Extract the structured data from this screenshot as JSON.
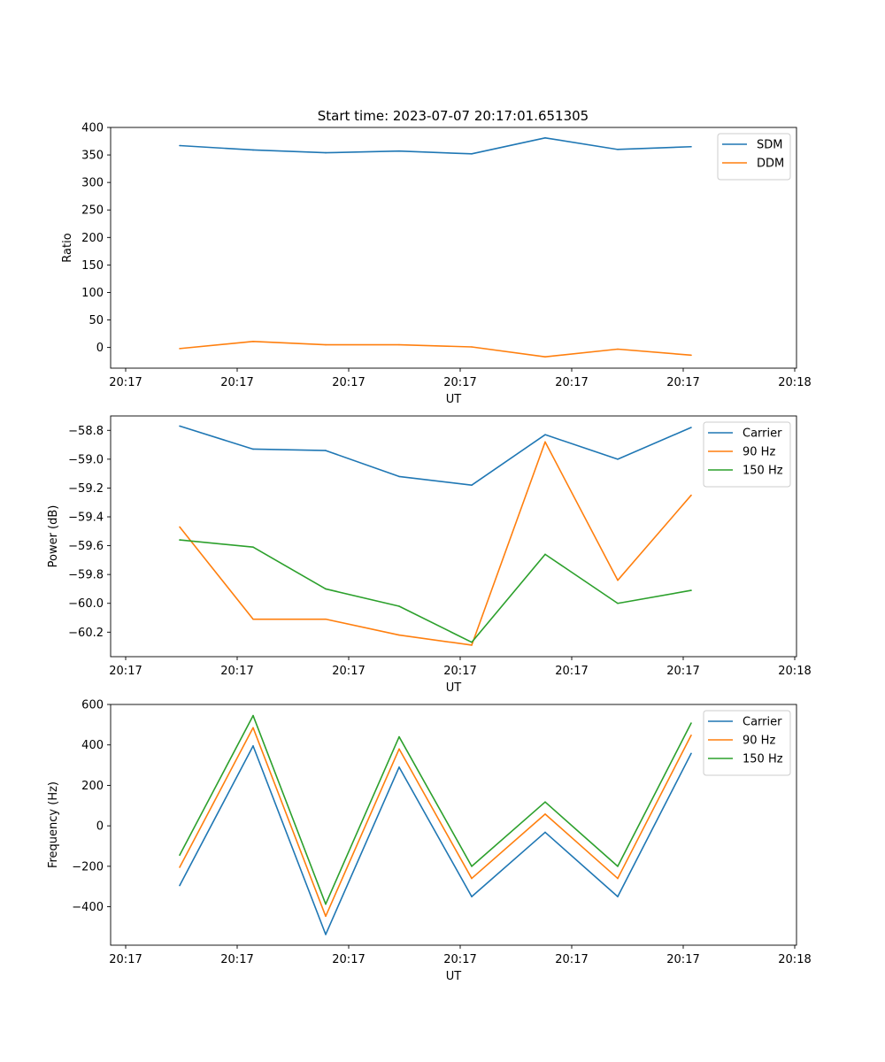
{
  "figure": {
    "title": "Start time: 2023-07-07 20:17:01.651305"
  },
  "chart_data": [
    {
      "type": "line",
      "name": "ratio",
      "xlabel": "UT",
      "ylabel": "Ratio",
      "xtick_labels": [
        "20:17",
        "20:17",
        "20:17",
        "20:17",
        "20:17",
        "20:17",
        "20:18"
      ],
      "ylim": [
        -37.6,
        400
      ],
      "yticks": [
        0,
        50,
        100,
        150,
        200,
        250,
        300,
        350,
        400
      ],
      "legend": "top-right",
      "series": [
        {
          "name": "SDM",
          "color": "#1f77b4",
          "values": [
            367,
            359,
            354,
            357,
            352,
            381,
            360,
            365
          ]
        },
        {
          "name": "DDM",
          "color": "#ff7f0e",
          "values": [
            -2,
            11,
            5,
            5,
            1,
            -17,
            -3,
            -14
          ]
        }
      ]
    },
    {
      "type": "line",
      "name": "power",
      "xlabel": "UT",
      "ylabel": "Power (dB)",
      "xtick_labels": [
        "20:17",
        "20:17",
        "20:17",
        "20:17",
        "20:17",
        "20:17",
        "20:18"
      ],
      "ylim": [
        -60.37,
        -58.7
      ],
      "yticks": [
        -60.2,
        -60.0,
        -59.8,
        -59.6,
        -59.4,
        -59.2,
        -59.0,
        -58.8
      ],
      "ytick_labels": [
        "−60.2",
        "−60.0",
        "−59.8",
        "−59.6",
        "−59.4",
        "−59.2",
        "−59.0",
        "−58.8"
      ],
      "legend": "top-right",
      "series": [
        {
          "name": "Carrier",
          "color": "#1f77b4",
          "values": [
            -58.77,
            -58.93,
            -58.94,
            -59.12,
            -59.18,
            -58.83,
            -59.0,
            -58.78
          ]
        },
        {
          "name": "90 Hz",
          "color": "#ff7f0e",
          "values": [
            -59.47,
            -60.11,
            -60.11,
            -60.22,
            -60.29,
            -58.88,
            -59.84,
            -59.25
          ]
        },
        {
          "name": "150 Hz",
          "color": "#2ca02c",
          "values": [
            -59.56,
            -59.61,
            -59.9,
            -60.02,
            -60.27,
            -59.66,
            -60.0,
            -59.91
          ]
        }
      ]
    },
    {
      "type": "line",
      "name": "frequency",
      "xlabel": "UT",
      "ylabel": "Frequency (Hz)",
      "xtick_labels": [
        "20:17",
        "20:17",
        "20:17",
        "20:17",
        "20:17",
        "20:17",
        "20:18"
      ],
      "ylim": [
        -590,
        600
      ],
      "yticks": [
        -400,
        -200,
        0,
        200,
        400,
        600
      ],
      "ytick_labels": [
        "−400",
        "−200",
        "0",
        "200",
        "400",
        "600"
      ],
      "legend": "top-right",
      "series": [
        {
          "name": "Carrier",
          "color": "#1f77b4",
          "values": [
            -295,
            395,
            -537,
            290,
            -350,
            -32,
            -350,
            358
          ]
        },
        {
          "name": "90 Hz",
          "color": "#ff7f0e",
          "values": [
            -205,
            485,
            -447,
            380,
            -260,
            58,
            -260,
            448
          ]
        },
        {
          "name": "150 Hz",
          "color": "#2ca02c",
          "values": [
            -145,
            545,
            -387,
            440,
            -200,
            118,
            -200,
            508
          ]
        }
      ]
    }
  ]
}
